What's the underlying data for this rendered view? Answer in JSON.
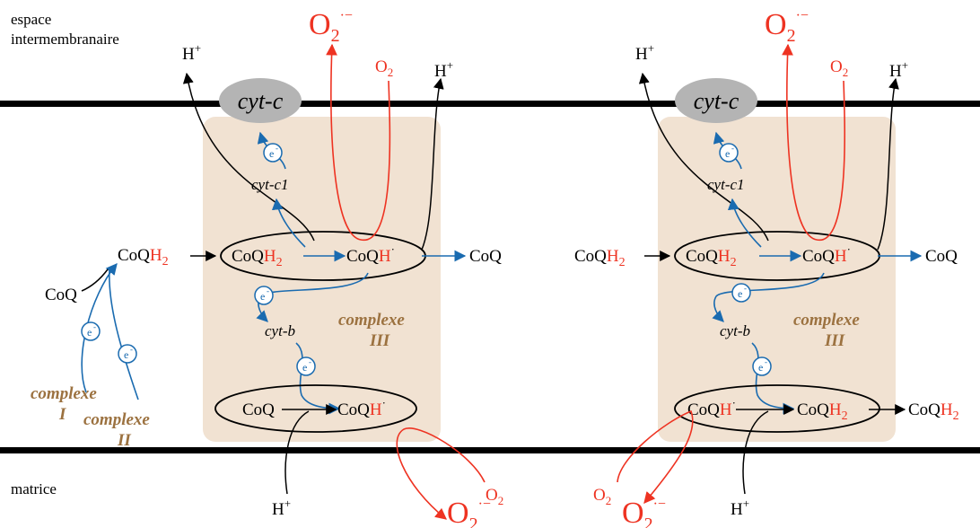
{
  "colors": {
    "electron": "#1a6bb0",
    "oxygen": "#ee3322",
    "complex_box": "#f1e2d2",
    "complex_label": "#9c7240",
    "membrane": "#000000",
    "cytc": "#b4b4b4"
  },
  "labels": {
    "space_line1": "espace",
    "space_line2": "intermembranaire",
    "matrix": "matrice",
    "cytc": "cyt-c",
    "cytc1": "cyt-c1",
    "cytb": "cyt-b",
    "complexe": "complexe",
    "roman_I": "I",
    "roman_II": "II",
    "roman_III": "III",
    "electron": "e",
    "electron_sup": "-",
    "coq": "CoQ",
    "h": "H",
    "h2": "H",
    "sub2": "2",
    "dot": "·",
    "hplus_h": "H",
    "hplus_sup": "+",
    "o": "O",
    "radical_sup": "·−"
  }
}
